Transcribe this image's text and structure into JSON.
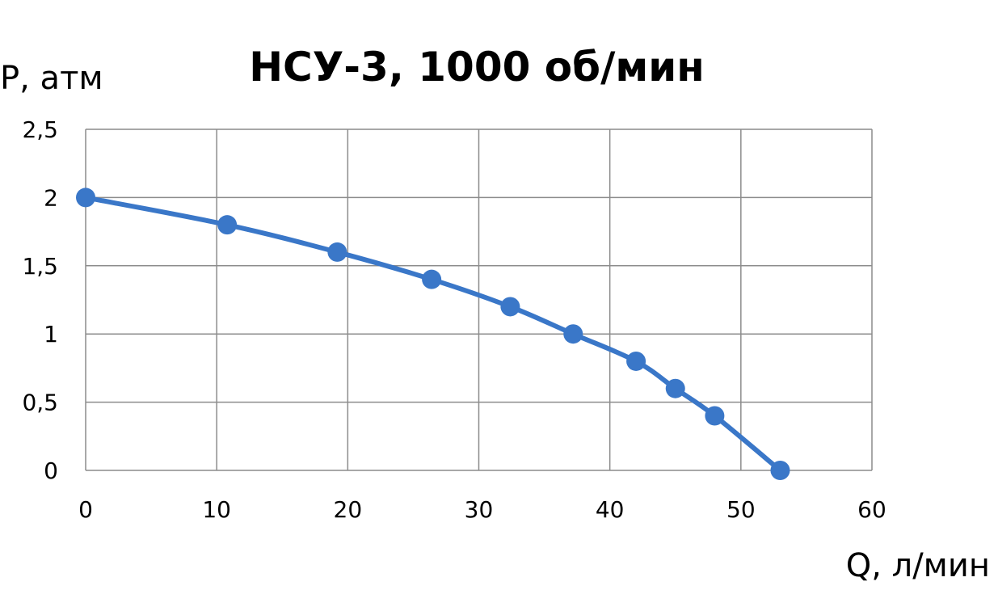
{
  "chart_data": {
    "type": "scatter",
    "title": "НСУ-3, 1000 об/мин",
    "xlabel": "Q, л/мин",
    "ylabel": "P, атм",
    "xlim": [
      0,
      60
    ],
    "ylim": [
      0,
      2.5
    ],
    "x_ticks": [
      "0",
      "10",
      "20",
      "30",
      "40",
      "50",
      "60"
    ],
    "y_ticks": [
      "0",
      "0,5",
      "1",
      "1,5",
      "2",
      "2,5"
    ],
    "grid": true,
    "legend": "none",
    "series": [
      {
        "color": "#3a77c8",
        "points": [
          {
            "x": 0,
            "y": 2.0
          },
          {
            "x": 10.8,
            "y": 1.8
          },
          {
            "x": 19.2,
            "y": 1.6
          },
          {
            "x": 26.4,
            "y": 1.4
          },
          {
            "x": 32.4,
            "y": 1.2
          },
          {
            "x": 37.2,
            "y": 1.0
          },
          {
            "x": 42.0,
            "y": 0.8
          },
          {
            "x": 45.0,
            "y": 0.6
          },
          {
            "x": 48.0,
            "y": 0.4
          },
          {
            "x": 53.0,
            "y": 0.0
          }
        ]
      }
    ]
  }
}
